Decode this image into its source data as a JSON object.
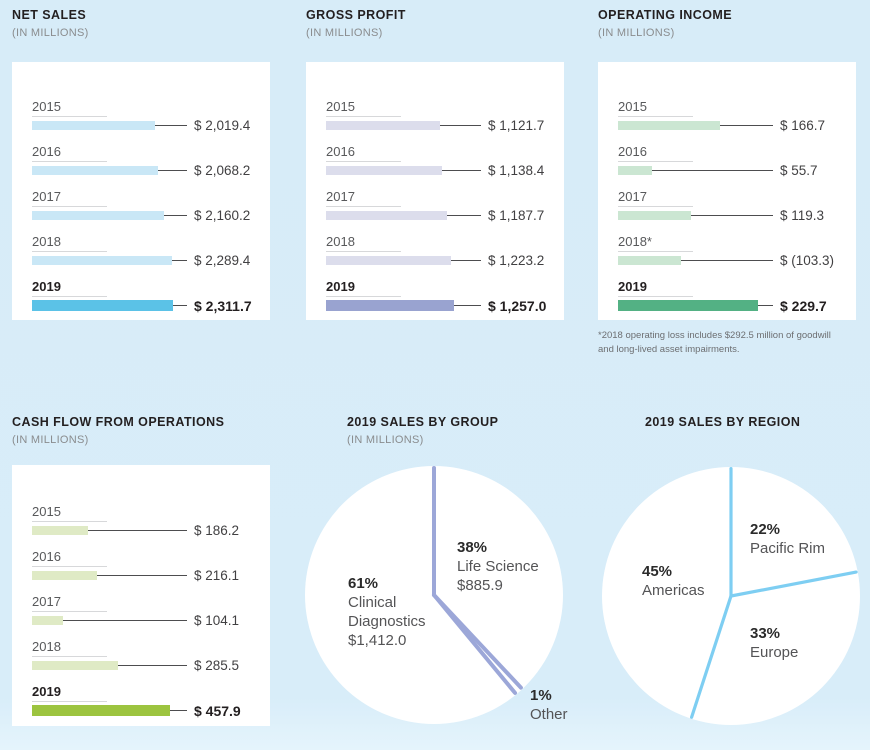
{
  "page": {
    "background_top": "#D7ECF8",
    "background_bottom": "#E5F4FC",
    "card_color": "#FFFFFF"
  },
  "chart_data": [
    {
      "id": "net_sales",
      "type": "bar",
      "title": "NET SALES",
      "subtitle": "(IN MILLIONS)",
      "categories": [
        "2015",
        "2016",
        "2017",
        "2018",
        "2019"
      ],
      "values": [
        2019.4,
        2068.2,
        2160.2,
        2289.4,
        2311.7
      ],
      "value_labels": [
        "$ 2,019.4",
        "$ 2,068.2",
        "$ 2,160.2",
        "$ 2,289.4",
        "$ 2,311.7"
      ],
      "highlight_index": 4,
      "bar_color": "#C9E7F6",
      "highlight_color": "#5BC2E7"
    },
    {
      "id": "gross_profit",
      "type": "bar",
      "title": "GROSS PROFIT",
      "subtitle": "(IN MILLIONS)",
      "categories": [
        "2015",
        "2016",
        "2017",
        "2018",
        "2019"
      ],
      "values": [
        1121.7,
        1138.4,
        1187.7,
        1223.2,
        1257.0
      ],
      "value_labels": [
        "$ 1,121.7",
        "$ 1,138.4",
        "$ 1,187.7",
        "$ 1,223.2",
        "$ 1,257.0"
      ],
      "highlight_index": 4,
      "bar_color": "#DCDDEC",
      "highlight_color": "#99A3D0"
    },
    {
      "id": "operating_income",
      "type": "bar",
      "title": "OPERATING INCOME",
      "subtitle": "(IN MILLIONS)",
      "categories": [
        "2015",
        "2016",
        "2017",
        "2018*",
        "2019"
      ],
      "values": [
        166.7,
        55.7,
        119.3,
        -103.3,
        229.7
      ],
      "value_labels": [
        "$ 166.7",
        "$ 55.7",
        "$ 119.3",
        "$ (103.3)",
        "$ 229.7"
      ],
      "highlight_index": 4,
      "bar_color": "#CBE6D2",
      "highlight_color": "#53B184",
      "footnote": "*2018 operating loss includes $292.5 million of goodwill and long-lived asset impairments."
    },
    {
      "id": "cash_flow_from_operations",
      "type": "bar",
      "title": "CASH FLOW FROM OPERATIONS",
      "subtitle": "(IN MILLIONS)",
      "categories": [
        "2015",
        "2016",
        "2017",
        "2018",
        "2019"
      ],
      "values": [
        186.2,
        216.1,
        104.1,
        285.5,
        457.9
      ],
      "value_labels": [
        "$ 186.2",
        "$ 216.1",
        "$ 104.1",
        "$ 285.5",
        "$ 457.9"
      ],
      "highlight_index": 4,
      "bar_color": "#DFEAC5",
      "highlight_color": "#9CC43F"
    },
    {
      "id": "sales_by_group",
      "type": "pie",
      "title": "2019 SALES BY GROUP",
      "subtitle": "(IN MILLIONS)",
      "slices": [
        {
          "label": "Life Science",
          "pct": 38,
          "pct_label": "38%",
          "amount": "$885.9"
        },
        {
          "label": "Other",
          "pct": 1,
          "pct_label": "1%",
          "amount": ""
        },
        {
          "label": "Clinical Diagnostics",
          "pct": 61,
          "pct_label": "61%",
          "amount": "$1,412.0"
        }
      ],
      "start_angle": "12 o'clock",
      "direction": "clockwise",
      "fill_color": "#FFFFFF",
      "line_color": "#9CA7D8"
    },
    {
      "id": "sales_by_region",
      "type": "pie",
      "title": "2019 SALES BY REGION",
      "subtitle": "",
      "slices": [
        {
          "label": "Pacific Rim",
          "pct": 22,
          "pct_label": "22%",
          "amount": ""
        },
        {
          "label": "Europe",
          "pct": 33,
          "pct_label": "33%",
          "amount": ""
        },
        {
          "label": "Americas",
          "pct": 45,
          "pct_label": "45%",
          "amount": ""
        }
      ],
      "start_angle": "12 o'clock",
      "direction": "clockwise",
      "fill_color": "#FFFFFF",
      "line_color": "#7ECEF2"
    }
  ]
}
